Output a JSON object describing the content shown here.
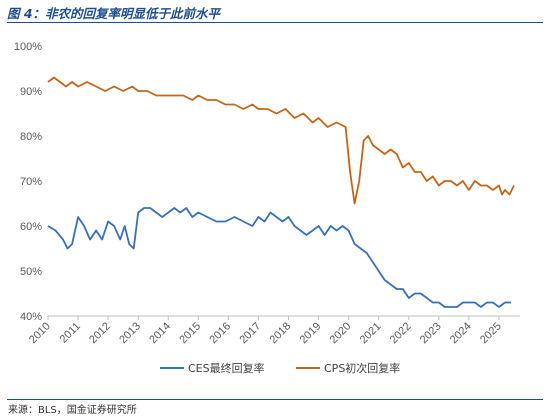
{
  "figure": {
    "title": "图 4：非农的回复率明显低于此前水平",
    "source": "来源：BLS，国金证券研究所"
  },
  "colors": {
    "ces": "#3a6fb5",
    "cps": "#c1651b",
    "axis": "#bfbfbf",
    "text": "#595959"
  },
  "chart_data": {
    "type": "line",
    "title": "",
    "xlabel": "",
    "ylabel": "",
    "xlim": [
      2010,
      2025.7
    ],
    "ylim": [
      40,
      100
    ],
    "y_ticks": [
      "40%",
      "50%",
      "60%",
      "70%",
      "80%",
      "90%",
      "100%"
    ],
    "y_tick_values": [
      40,
      50,
      60,
      70,
      80,
      90,
      100
    ],
    "x_ticks": [
      "2010",
      "2011",
      "2012",
      "2013",
      "2014",
      "2015",
      "2016",
      "2017",
      "2018",
      "2019",
      "2020",
      "2021",
      "2022",
      "2023",
      "2024",
      "2025"
    ],
    "x_tick_values": [
      2010,
      2011,
      2012,
      2013,
      2014,
      2015,
      2016,
      2017,
      2018,
      2019,
      2020,
      2021,
      2022,
      2023,
      2024,
      2025
    ],
    "grid": false,
    "legend": "bottom-center",
    "series": [
      {
        "name": "CES最终回复率",
        "x": [
          2010.0,
          2010.25,
          2010.5,
          2010.65,
          2010.8,
          2011.0,
          2011.2,
          2011.4,
          2011.6,
          2011.8,
          2012.0,
          2012.2,
          2012.4,
          2012.55,
          2012.7,
          2012.85,
          2013.0,
          2013.2,
          2013.4,
          2013.6,
          2013.8,
          2014.0,
          2014.2,
          2014.4,
          2014.6,
          2014.8,
          2015.0,
          2015.3,
          2015.6,
          2015.9,
          2016.2,
          2016.5,
          2016.8,
          2017.0,
          2017.2,
          2017.4,
          2017.6,
          2017.8,
          2018.0,
          2018.2,
          2018.4,
          2018.6,
          2018.8,
          2019.0,
          2019.2,
          2019.4,
          2019.6,
          2019.8,
          2020.0,
          2020.2,
          2020.4,
          2020.6,
          2020.8,
          2021.0,
          2021.2,
          2021.4,
          2021.6,
          2021.8,
          2022.0,
          2022.2,
          2022.4,
          2022.6,
          2022.8,
          2023.0,
          2023.2,
          2023.4,
          2023.6,
          2023.8,
          2024.0,
          2024.2,
          2024.4,
          2024.6,
          2024.8,
          2025.0,
          2025.2,
          2025.4
        ],
        "values": [
          60,
          59,
          57,
          55,
          56,
          62,
          60,
          57,
          59,
          57,
          61,
          60,
          57,
          60,
          56,
          55,
          63,
          64,
          64,
          63,
          62,
          63,
          64,
          63,
          64,
          62,
          63,
          62,
          61,
          61,
          62,
          61,
          60,
          62,
          61,
          63,
          62,
          61,
          62,
          60,
          59,
          58,
          59,
          60,
          58,
          60,
          59,
          60,
          59,
          56,
          55,
          54,
          52,
          50,
          48,
          47,
          46,
          46,
          44,
          45,
          45,
          44,
          43,
          43,
          42,
          42,
          42,
          43,
          43,
          43,
          42,
          43,
          43,
          42,
          43,
          43
        ]
      },
      {
        "name": "CPS初次回复率",
        "x": [
          2010.0,
          2010.2,
          2010.4,
          2010.6,
          2010.8,
          2011.0,
          2011.3,
          2011.6,
          2011.9,
          2012.2,
          2012.5,
          2012.8,
          2013.0,
          2013.3,
          2013.6,
          2013.9,
          2014.2,
          2014.5,
          2014.8,
          2015.0,
          2015.3,
          2015.6,
          2015.9,
          2016.2,
          2016.5,
          2016.8,
          2017.0,
          2017.3,
          2017.6,
          2017.9,
          2018.2,
          2018.5,
          2018.8,
          2019.0,
          2019.3,
          2019.6,
          2019.9,
          2020.05,
          2020.2,
          2020.35,
          2020.5,
          2020.65,
          2020.8,
          2021.0,
          2021.2,
          2021.4,
          2021.6,
          2021.8,
          2022.0,
          2022.2,
          2022.4,
          2022.6,
          2022.8,
          2023.0,
          2023.2,
          2023.4,
          2023.6,
          2023.8,
          2024.0,
          2024.2,
          2024.4,
          2024.6,
          2024.8,
          2025.0,
          2025.1,
          2025.2,
          2025.35,
          2025.5
        ],
        "values": [
          92,
          93,
          92,
          91,
          92,
          91,
          92,
          91,
          90,
          91,
          90,
          91,
          90,
          90,
          89,
          89,
          89,
          89,
          88,
          89,
          88,
          88,
          87,
          87,
          86,
          87,
          86,
          86,
          85,
          86,
          84,
          85,
          83,
          84,
          82,
          83,
          82,
          72,
          65,
          70,
          79,
          80,
          78,
          77,
          76,
          77,
          76,
          73,
          74,
          72,
          72,
          70,
          71,
          69,
          70,
          70,
          69,
          70,
          68,
          70,
          69,
          69,
          68,
          69,
          67,
          68,
          67,
          69
        ]
      }
    ]
  }
}
